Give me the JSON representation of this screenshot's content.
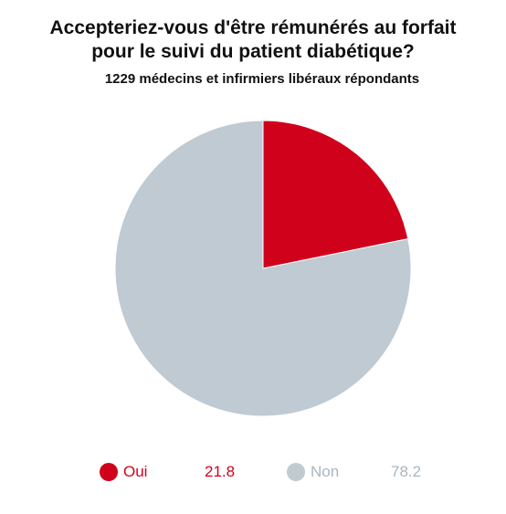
{
  "chart_data": {
    "type": "pie",
    "title_lines": [
      "Accepteriez-vous d'être rémunérés au forfait",
      "pour le suivi du patient diabétique?"
    ],
    "subtitle": "1229 médecins et infirmiers libéraux répondants",
    "categories": [
      "Oui",
      "Non"
    ],
    "values": [
      21.8,
      78.2
    ],
    "value_labels": [
      "21.8",
      "78.2"
    ],
    "colors": [
      "#d0021b",
      "#bfcad3"
    ],
    "legend_text_colors": [
      "#d0021b",
      "#aab6c0"
    ],
    "legend_position": "bottom"
  }
}
